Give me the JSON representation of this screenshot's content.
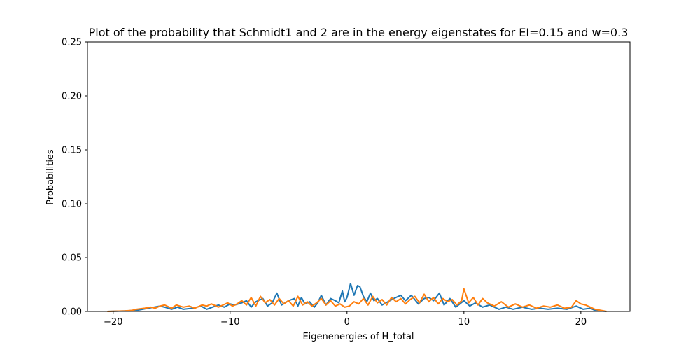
{
  "chart_data": {
    "type": "line",
    "title": "Plot of the probability that Schmidt1 and 2 are in the energy eigenstates for EI=0.15 and w=0.3",
    "xlabel": "Eigenenergies of H_total",
    "ylabel": "Probabilities",
    "xlim": [
      -22.2,
      24.2
    ],
    "ylim": [
      0.0,
      0.25
    ],
    "xticks": [
      -20,
      -10,
      0,
      10,
      20
    ],
    "xtick_labels": [
      "−20",
      "−10",
      "0",
      "10",
      "20"
    ],
    "yticks": [
      0.0,
      0.05,
      0.1,
      0.15,
      0.2,
      0.25
    ],
    "ytick_labels": [
      "0.00",
      "0.05",
      "0.10",
      "0.15",
      "0.20",
      "0.25"
    ],
    "grid": false,
    "legend": "none",
    "series": [
      {
        "color": "#1f77b4",
        "x": [
          -20.5,
          -19.0,
          -18.0,
          -17.0,
          -16.0,
          -15.6,
          -15.0,
          -14.5,
          -14.0,
          -13.2,
          -12.5,
          -12.0,
          -11.5,
          -11.0,
          -10.5,
          -10.0,
          -9.6,
          -9.0,
          -8.6,
          -8.2,
          -7.8,
          -7.2,
          -6.8,
          -6.4,
          -6.0,
          -5.6,
          -5.0,
          -4.5,
          -4.2,
          -3.9,
          -3.6,
          -3.2,
          -2.8,
          -2.5,
          -2.2,
          -1.8,
          -1.4,
          -1.0,
          -0.7,
          -0.4,
          -0.2,
          0.0,
          0.3,
          0.6,
          0.9,
          1.1,
          1.4,
          1.7,
          2.0,
          2.3,
          2.6,
          3.0,
          3.5,
          4.0,
          4.6,
          5.0,
          5.5,
          6.1,
          6.6,
          7.0,
          7.4,
          7.9,
          8.3,
          8.8,
          9.3,
          10.0,
          10.5,
          11.0,
          11.6,
          12.2,
          13.0,
          13.6,
          14.2,
          15.0,
          15.8,
          16.5,
          17.2,
          18.0,
          18.8,
          19.6,
          20.2,
          20.8,
          21.2,
          22.2
        ],
        "y": [
          0.0,
          0.0005,
          0.001,
          0.003,
          0.005,
          0.004,
          0.002,
          0.004,
          0.002,
          0.003,
          0.005,
          0.002,
          0.004,
          0.006,
          0.004,
          0.007,
          0.006,
          0.008,
          0.01,
          0.004,
          0.009,
          0.012,
          0.005,
          0.008,
          0.017,
          0.006,
          0.01,
          0.012,
          0.005,
          0.013,
          0.007,
          0.009,
          0.004,
          0.008,
          0.015,
          0.006,
          0.012,
          0.01,
          0.008,
          0.019,
          0.009,
          0.013,
          0.026,
          0.015,
          0.024,
          0.023,
          0.014,
          0.009,
          0.017,
          0.01,
          0.012,
          0.006,
          0.009,
          0.012,
          0.015,
          0.01,
          0.015,
          0.007,
          0.012,
          0.013,
          0.01,
          0.017,
          0.006,
          0.012,
          0.004,
          0.01,
          0.005,
          0.008,
          0.004,
          0.006,
          0.002,
          0.004,
          0.002,
          0.004,
          0.002,
          0.003,
          0.002,
          0.003,
          0.002,
          0.005,
          0.002,
          0.003,
          0.001,
          0.0
        ]
      },
      {
        "color": "#ff7f0e",
        "x": [
          -20.5,
          -19.0,
          -18.4,
          -18.0,
          -17.3,
          -16.8,
          -16.4,
          -16.0,
          -15.6,
          -15.0,
          -14.6,
          -14.0,
          -13.5,
          -13.0,
          -12.4,
          -12.0,
          -11.6,
          -11.0,
          -10.6,
          -10.2,
          -9.8,
          -9.4,
          -9.0,
          -8.6,
          -8.2,
          -7.8,
          -7.4,
          -7.0,
          -6.6,
          -6.2,
          -5.8,
          -5.4,
          -5.0,
          -4.6,
          -4.2,
          -3.8,
          -3.4,
          -3.0,
          -2.6,
          -2.2,
          -1.8,
          -1.4,
          -1.0,
          -0.6,
          -0.2,
          0.2,
          0.6,
          1.0,
          1.4,
          1.8,
          2.2,
          2.6,
          3.0,
          3.4,
          3.8,
          4.2,
          4.6,
          5.0,
          5.4,
          5.8,
          6.2,
          6.6,
          7.0,
          7.4,
          7.8,
          8.2,
          8.6,
          9.0,
          9.4,
          9.8,
          10.0,
          10.4,
          10.8,
          11.2,
          11.6,
          12.0,
          12.6,
          13.2,
          13.8,
          14.4,
          15.0,
          15.6,
          16.2,
          16.8,
          17.4,
          18.0,
          18.6,
          19.2,
          19.6,
          20.0,
          20.4,
          20.8,
          21.2,
          22.2
        ],
        "y": [
          0.0,
          0.0005,
          0.001,
          0.002,
          0.003,
          0.004,
          0.003,
          0.005,
          0.006,
          0.003,
          0.006,
          0.004,
          0.005,
          0.003,
          0.006,
          0.005,
          0.007,
          0.004,
          0.006,
          0.008,
          0.005,
          0.007,
          0.01,
          0.006,
          0.013,
          0.005,
          0.014,
          0.008,
          0.011,
          0.006,
          0.012,
          0.007,
          0.01,
          0.005,
          0.014,
          0.006,
          0.009,
          0.005,
          0.008,
          0.012,
          0.006,
          0.01,
          0.005,
          0.007,
          0.004,
          0.005,
          0.009,
          0.007,
          0.012,
          0.006,
          0.014,
          0.008,
          0.011,
          0.006,
          0.013,
          0.009,
          0.012,
          0.007,
          0.011,
          0.014,
          0.008,
          0.016,
          0.009,
          0.013,
          0.007,
          0.012,
          0.009,
          0.011,
          0.006,
          0.01,
          0.021,
          0.008,
          0.013,
          0.006,
          0.012,
          0.008,
          0.005,
          0.009,
          0.004,
          0.007,
          0.004,
          0.006,
          0.003,
          0.005,
          0.004,
          0.006,
          0.003,
          0.004,
          0.01,
          0.007,
          0.006,
          0.004,
          0.002,
          0.0
        ]
      }
    ]
  }
}
